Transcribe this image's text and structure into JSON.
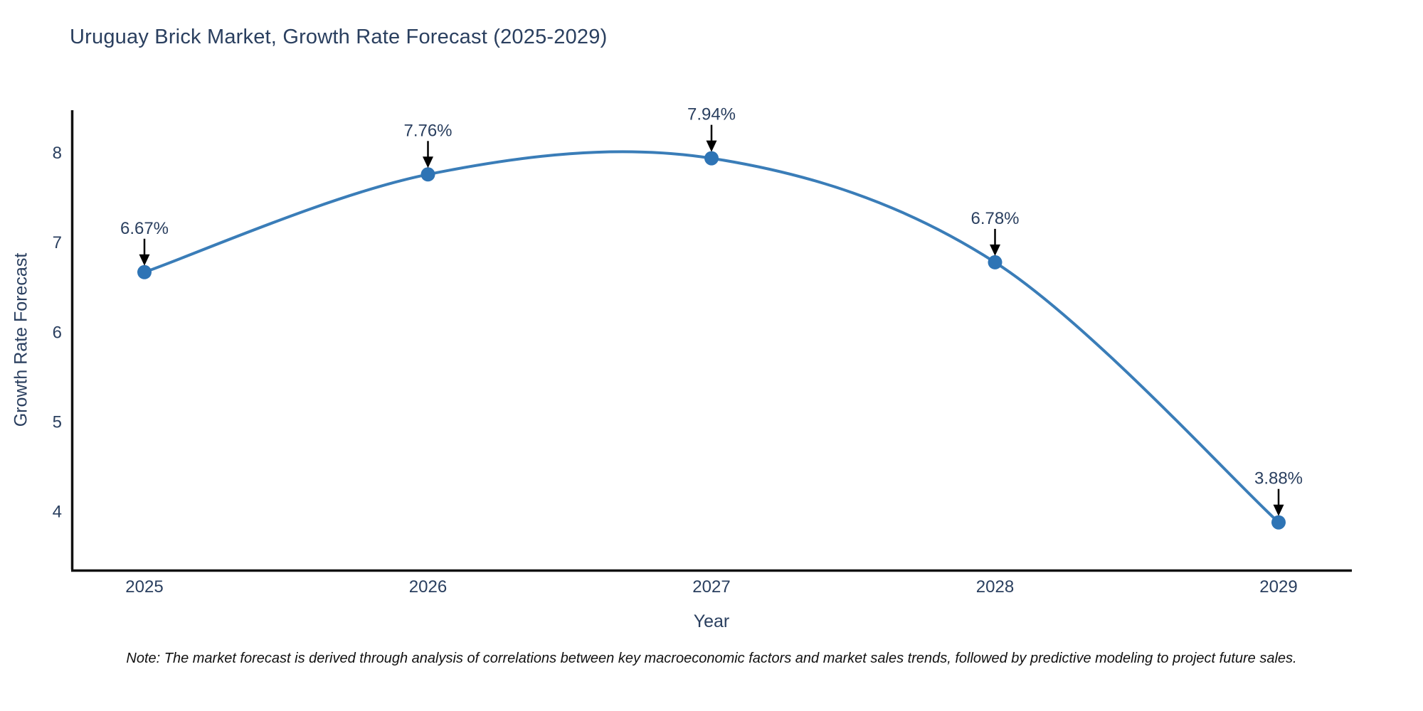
{
  "chart_data": {
    "type": "line",
    "title": "Uruguay Brick Market, Growth Rate Forecast (2025-2029)",
    "xlabel": "Year",
    "ylabel": "Growth Rate Forecast",
    "x": [
      2025,
      2026,
      2027,
      2028,
      2029
    ],
    "series": [
      {
        "name": "Growth Rate Forecast",
        "values": [
          6.67,
          7.76,
          7.94,
          6.78,
          3.88
        ]
      }
    ],
    "point_labels": [
      "6.67%",
      "7.76%",
      "7.94%",
      "6.78%",
      "3.88%"
    ],
    "yticks": [
      4,
      5,
      6,
      7,
      8
    ],
    "xticks": [
      "2025",
      "2026",
      "2027",
      "2028",
      "2029"
    ],
    "ylim": [
      3.35,
      8.45
    ],
    "line_shape": "spline",
    "grid": false,
    "legend_position": "none",
    "annotations_style": "value label above point with black arrow pointing down to marker",
    "colors": {
      "line": "#3a7db8",
      "marker": "#2e74b5",
      "axis": "#111111",
      "text": "#2a3f5f",
      "annotation_arrow": "#000000",
      "background": "#ffffff"
    }
  },
  "note": {
    "text": "Note: The market forecast is derived through analysis of correlations between key macroeconomic factors and market sales trends, followed by predictive modeling to project future sales."
  }
}
